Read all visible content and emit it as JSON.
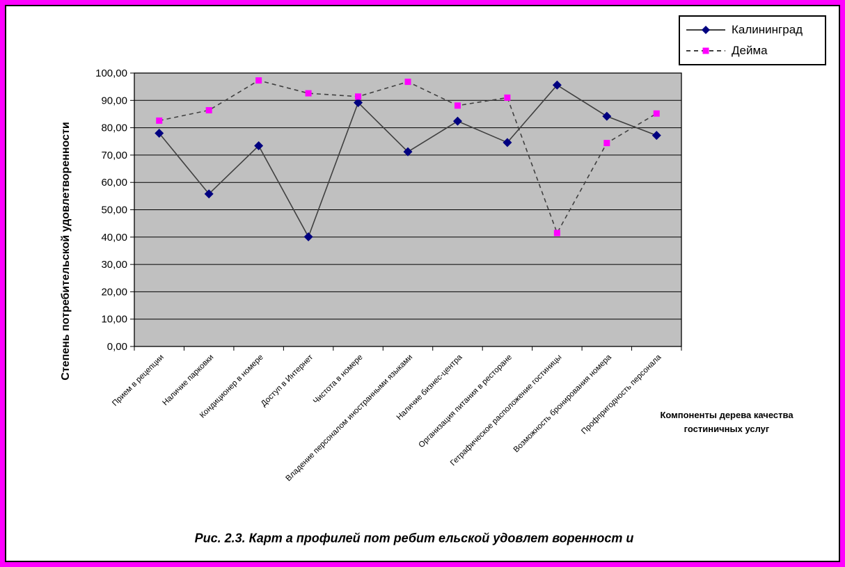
{
  "page": {
    "border_color": "#FF00FF",
    "caption": "Рис. 2.3. Карт а профилей пот ребит ельской удовлет воренност и"
  },
  "chart_data": {
    "type": "line",
    "title": "",
    "ylabel": "Степень потребительской удовлетворенности",
    "xlabel_line1": "Компоненты дерева качества",
    "xlabel_line2": "гостиничных услуг",
    "ylim": [
      0,
      100
    ],
    "ytick_step": 10,
    "ytick_decimal_separator": ",",
    "grid": true,
    "plot_bg_color": "#C0C0C0",
    "gridline_color": "#000000",
    "legend_position": "top-right",
    "categories": [
      "Прием в рецепции",
      "Наличие парковки",
      "Кондиционер в номере",
      "Доступ в Интернет",
      "Чистота в номере",
      "Владение персоналом иностранными языками",
      "Наличие бизнес-центра",
      "Организация питания в ресторане",
      "Гетрафическое расположение гостиницы",
      "Возможность бронирования номера",
      "Профпригодность персонала"
    ],
    "series": [
      {
        "name": "Калининград",
        "values": [
          78.0,
          55.8,
          73.4,
          40.1,
          89.2,
          71.2,
          82.4,
          74.6,
          95.6,
          84.2,
          77.2
        ],
        "line_style": "solid",
        "line_color": "#404040",
        "marker": "diamond",
        "marker_color": "#000080"
      },
      {
        "name": "Дейма",
        "values": [
          82.6,
          86.4,
          97.3,
          92.6,
          91.4,
          96.8,
          88.1,
          91.0,
          41.5,
          74.4,
          85.2
        ],
        "line_style": "dashed",
        "line_color": "#404040",
        "marker": "square",
        "marker_color": "#FF00FF"
      }
    ]
  }
}
